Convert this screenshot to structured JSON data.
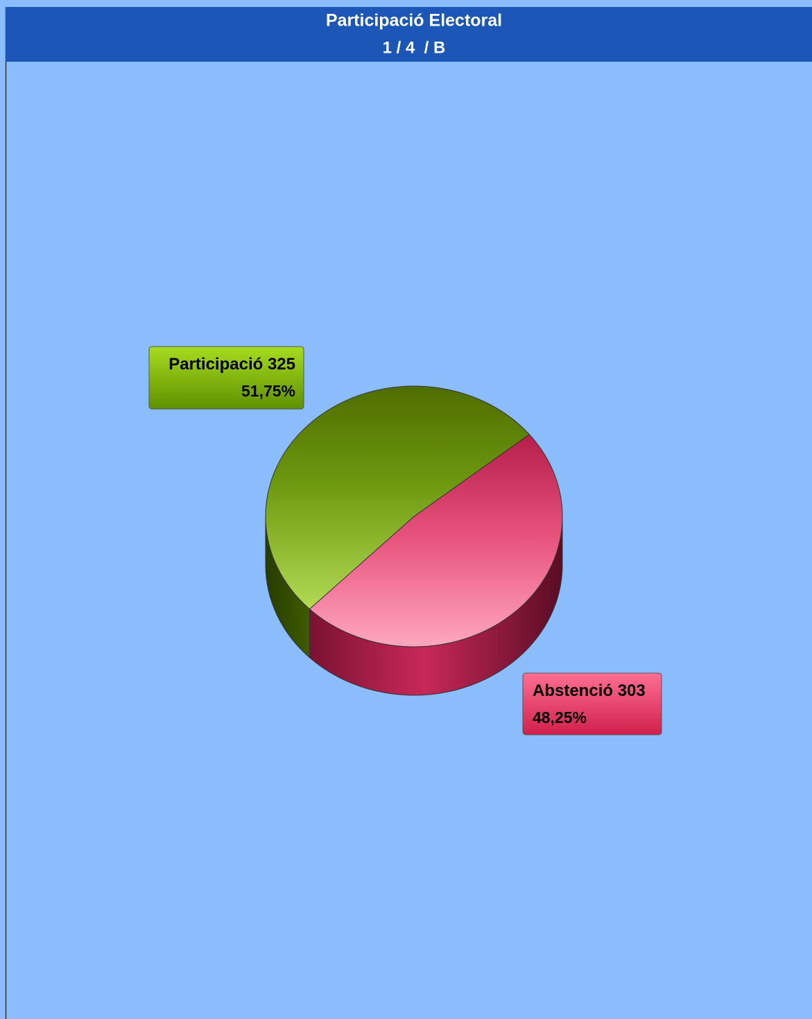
{
  "chart_data": {
    "type": "pie",
    "title": "Participació Electoral",
    "subtitle": "1 / 4  / B",
    "categories": [
      "Participació",
      "Abstenció"
    ],
    "values": [
      325,
      303
    ],
    "percentages": [
      51.75,
      48.25
    ],
    "percentage_labels": [
      "51,75%",
      "48,25%"
    ],
    "colors": [
      "#6e9a10",
      "#e8436e"
    ]
  }
}
